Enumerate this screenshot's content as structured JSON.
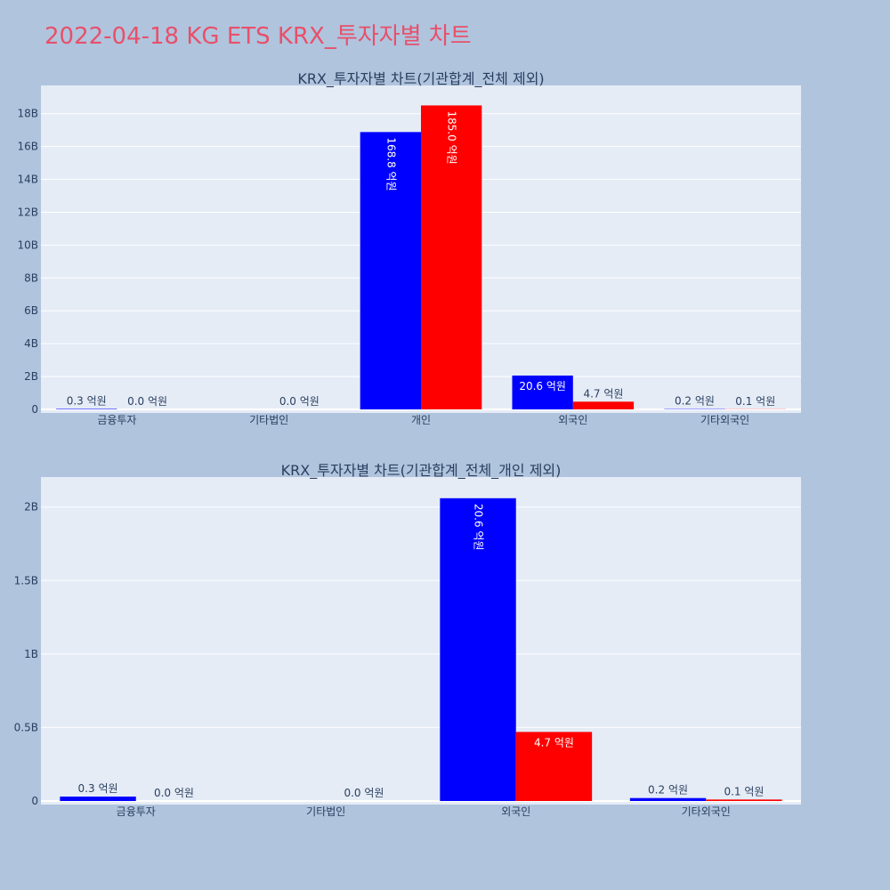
{
  "title": "2022-04-18 KG ETS KRX_투자자별 차트",
  "chart_data": [
    {
      "type": "bar",
      "title": "KRX_투자자별 차트(기관합계_전체 제외)",
      "categories": [
        "금융투자",
        "기타법인",
        "개인",
        "외국인",
        "기타외국인"
      ],
      "series": [
        {
          "color": "#0000ff",
          "values": [
            30000000,
            0,
            16880000000,
            2060000000,
            20000000
          ],
          "labels": [
            "0.3 억원",
            "",
            "168.8 억원",
            "20.6 억원",
            "0.2 억원"
          ]
        },
        {
          "color": "#ff0000",
          "values": [
            0,
            0,
            18500000000,
            470000000,
            10000000
          ],
          "labels": [
            "0.0 억원",
            "0.0 억원",
            "185.0 억원",
            "4.7 억원",
            "0.1 억원"
          ]
        }
      ],
      "ylim": [
        0,
        19500000000
      ],
      "yticks": [
        0,
        2000000000,
        4000000000,
        6000000000,
        8000000000,
        10000000000,
        12000000000,
        14000000000,
        16000000000,
        18000000000
      ],
      "ytick_labels": [
        "0",
        "2B",
        "4B",
        "6B",
        "8B",
        "10B",
        "12B",
        "14B",
        "16B",
        "18B"
      ],
      "grid": true,
      "barmode": "group"
    },
    {
      "type": "bar",
      "title": "KRX_투자자별 차트(기관합계_전체_개인 제외)",
      "categories": [
        "금융투자",
        "기타법인",
        "외국인",
        "기타외국인"
      ],
      "series": [
        {
          "color": "#0000ff",
          "values": [
            30000000,
            0,
            2060000000,
            20000000
          ],
          "labels": [
            "0.3 억원",
            "",
            "20.6 억원",
            "0.2 억원"
          ]
        },
        {
          "color": "#ff0000",
          "values": [
            0,
            0,
            470000000,
            10000000
          ],
          "labels": [
            "0.0 억원",
            "0.0 억원",
            "4.7 억원",
            "0.1 억원"
          ]
        }
      ],
      "ylim": [
        0,
        2180000000
      ],
      "yticks": [
        0,
        500000000,
        1000000000,
        1500000000,
        2000000000
      ],
      "ytick_labels": [
        "0",
        "0.5B",
        "1B",
        "1.5B",
        "2B"
      ],
      "grid": true,
      "barmode": "group"
    }
  ]
}
